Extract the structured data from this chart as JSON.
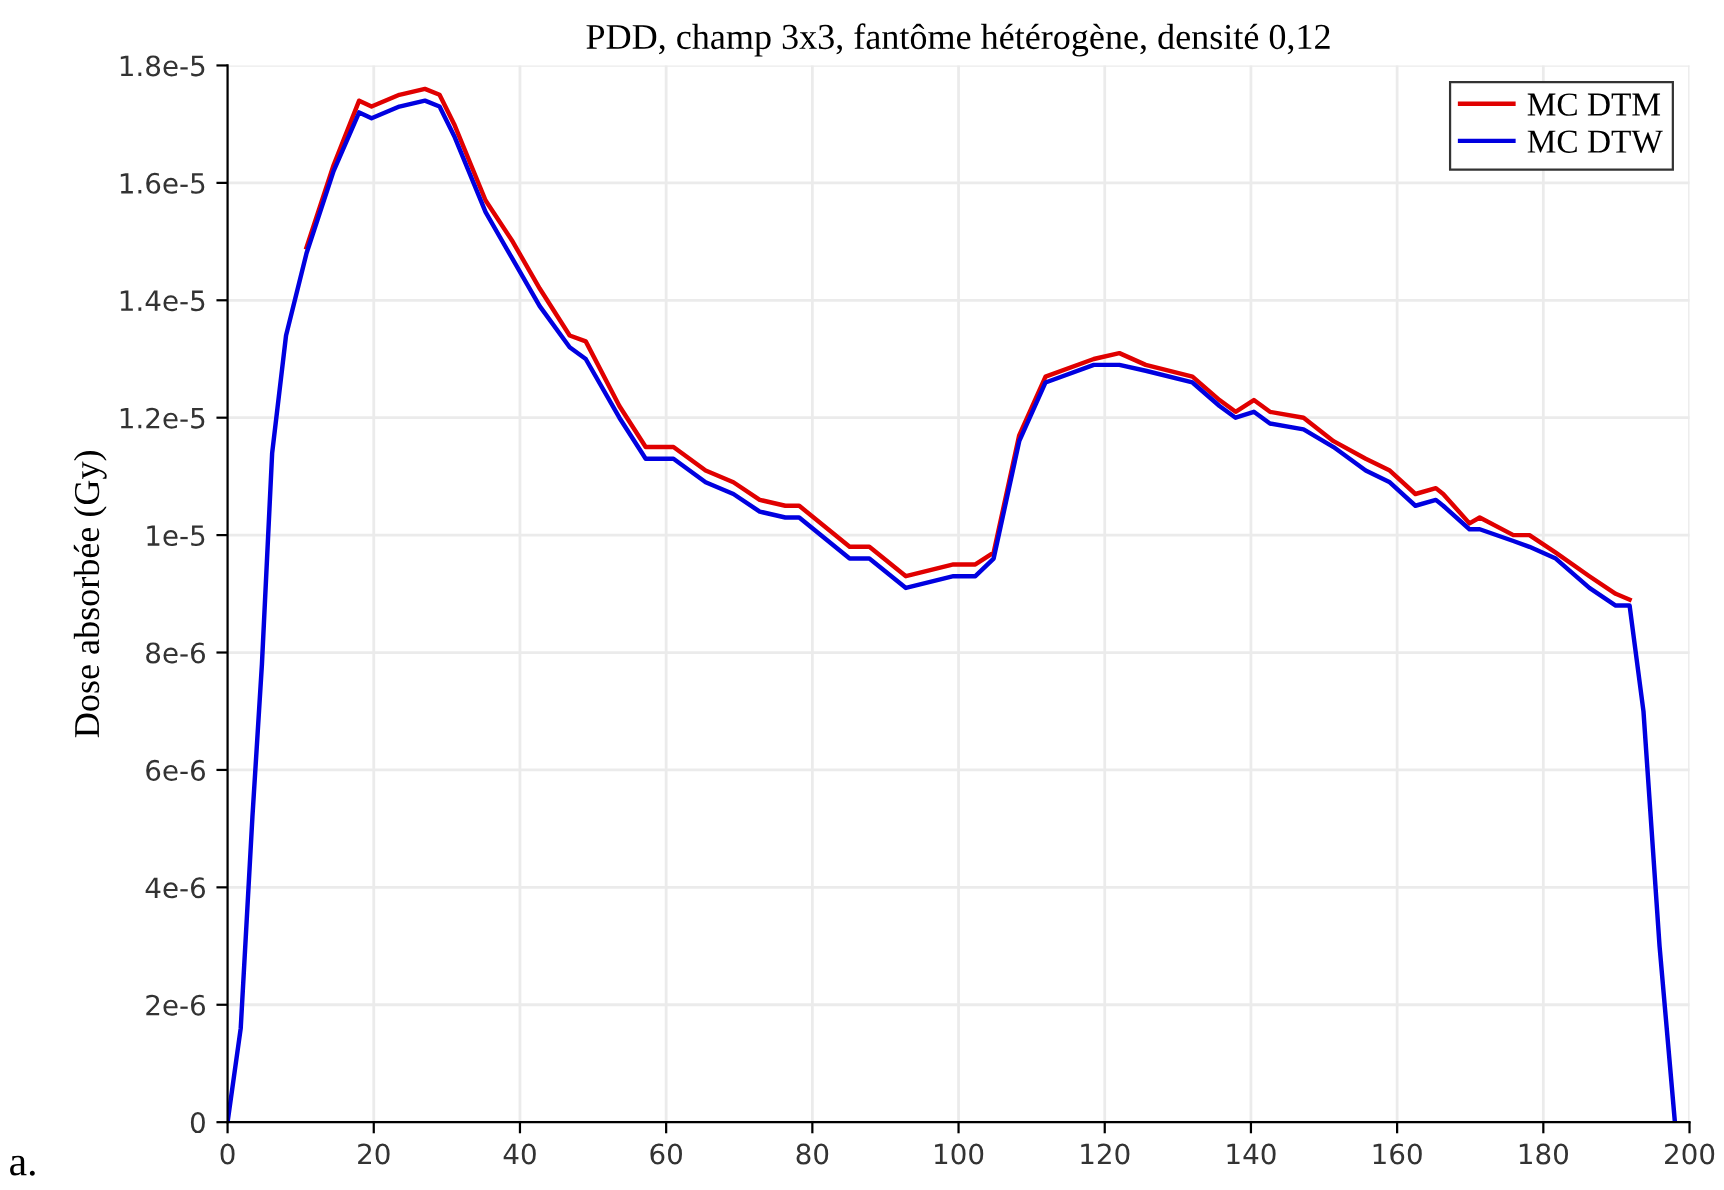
{
  "chart_data": {
    "type": "line",
    "title": "PDD, champ 3x3, fantôme hétérogène, densité 0,12",
    "ylabel": "Dose absorbée (Gy)",
    "xlim": [
      0,
      200
    ],
    "xticks": [
      0,
      20,
      40,
      60,
      80,
      100,
      120,
      140,
      160,
      180,
      200
    ],
    "ylim": [
      0,
      1.8e-05
    ],
    "yticks": [
      0,
      {
        "value": 2e-06,
        "label": "2e-6"
      },
      {
        "value": 4e-06,
        "label": "4e-6"
      },
      {
        "value": 6e-06,
        "label": "6e-6"
      },
      {
        "value": 8e-06,
        "label": "8e-6"
      },
      {
        "value": 1e-05,
        "label": "1e-5"
      },
      {
        "value": 1.2e-05,
        "label": "1.2e-5"
      },
      {
        "value": 1.4e-05,
        "label": "1.4e-5"
      },
      {
        "value": 1.6e-05,
        "label": "1.6e-5"
      },
      {
        "value": 1.8e-05,
        "label": "1.8e-5"
      }
    ],
    "x": [
      0,
      1.8,
      3.4,
      4.7,
      6.1,
      8,
      10.8,
      14.5,
      18,
      19.7,
      23.5,
      27,
      29,
      31,
      35.3,
      39,
      42.7,
      46.8,
      49,
      53.6,
      57.2,
      61,
      63.2,
      65.4,
      69.2,
      72.8,
      76.3,
      78.2,
      85.1,
      87.8,
      92.8,
      99.3,
      102.3,
      104.8,
      108.3,
      111.9,
      118.5,
      122,
      125.6,
      132,
      135.7,
      137.9,
      140.4,
      142.6,
      147.2,
      151.3,
      155.7,
      159,
      162.5,
      165.3,
      166.3,
      169.9,
      171.3,
      175.9,
      178.1,
      181.7,
      186.3,
      189.9,
      191.8,
      193.7,
      195.9,
      198
    ],
    "series": [
      {
        "name": "MC DTM",
        "color": "#e00000",
        "values": [
          null,
          null,
          null,
          null,
          null,
          null,
          1.49e-05,
          1.63e-05,
          1.74e-05,
          1.73e-05,
          1.75e-05,
          1.76e-05,
          1.75e-05,
          1.7e-05,
          1.57e-05,
          1.5e-05,
          1.42e-05,
          1.34e-05,
          1.33e-05,
          1.22e-05,
          1.15e-05,
          1.15e-05,
          1.13e-05,
          1.11e-05,
          1.09e-05,
          1.06e-05,
          1.05e-05,
          1.05e-05,
          9.8e-06,
          9.8e-06,
          9.3e-06,
          9.5e-06,
          9.5e-06,
          9.7e-06,
          1.17e-05,
          1.27e-05,
          1.3e-05,
          1.31e-05,
          1.29e-05,
          1.27e-05,
          1.23e-05,
          1.21e-05,
          1.23e-05,
          1.21e-05,
          1.2e-05,
          1.16e-05,
          1.13e-05,
          1.11e-05,
          1.07e-05,
          1.08e-05,
          1.07e-05,
          1.02e-05,
          1.03e-05,
          1e-05,
          1e-05,
          9.7e-06,
          9.3e-06,
          9e-06,
          8.9e-06,
          null,
          null,
          null
        ]
      },
      {
        "name": "MC DTW",
        "color": "#0000e0",
        "values": [
          0,
          1.6e-06,
          5.2e-06,
          7.8e-06,
          1.14e-05,
          1.34e-05,
          1.48e-05,
          1.62e-05,
          1.72e-05,
          1.71e-05,
          1.73e-05,
          1.74e-05,
          1.73e-05,
          1.68e-05,
          1.55e-05,
          1.47e-05,
          1.39e-05,
          1.32e-05,
          1.3e-05,
          1.2e-05,
          1.13e-05,
          1.13e-05,
          1.11e-05,
          1.09e-05,
          1.07e-05,
          1.04e-05,
          1.03e-05,
          1.03e-05,
          9.6e-06,
          9.6e-06,
          9.1e-06,
          9.3e-06,
          9.3e-06,
          9.6e-06,
          1.16e-05,
          1.26e-05,
          1.29e-05,
          1.29e-05,
          1.28e-05,
          1.26e-05,
          1.22e-05,
          1.2e-05,
          1.21e-05,
          1.19e-05,
          1.18e-05,
          1.15e-05,
          1.11e-05,
          1.09e-05,
          1.05e-05,
          1.06e-05,
          1.05e-05,
          1.01e-05,
          1.01e-05,
          9.9e-06,
          9.8e-06,
          9.6e-06,
          9.1e-06,
          8.8e-06,
          8.8e-06,
          7e-06,
          3e-06,
          0
        ]
      }
    ],
    "grid": true,
    "legend": "top right",
    "marker": "none",
    "line_style": "solid",
    "annotations": [
      "a."
    ]
  }
}
